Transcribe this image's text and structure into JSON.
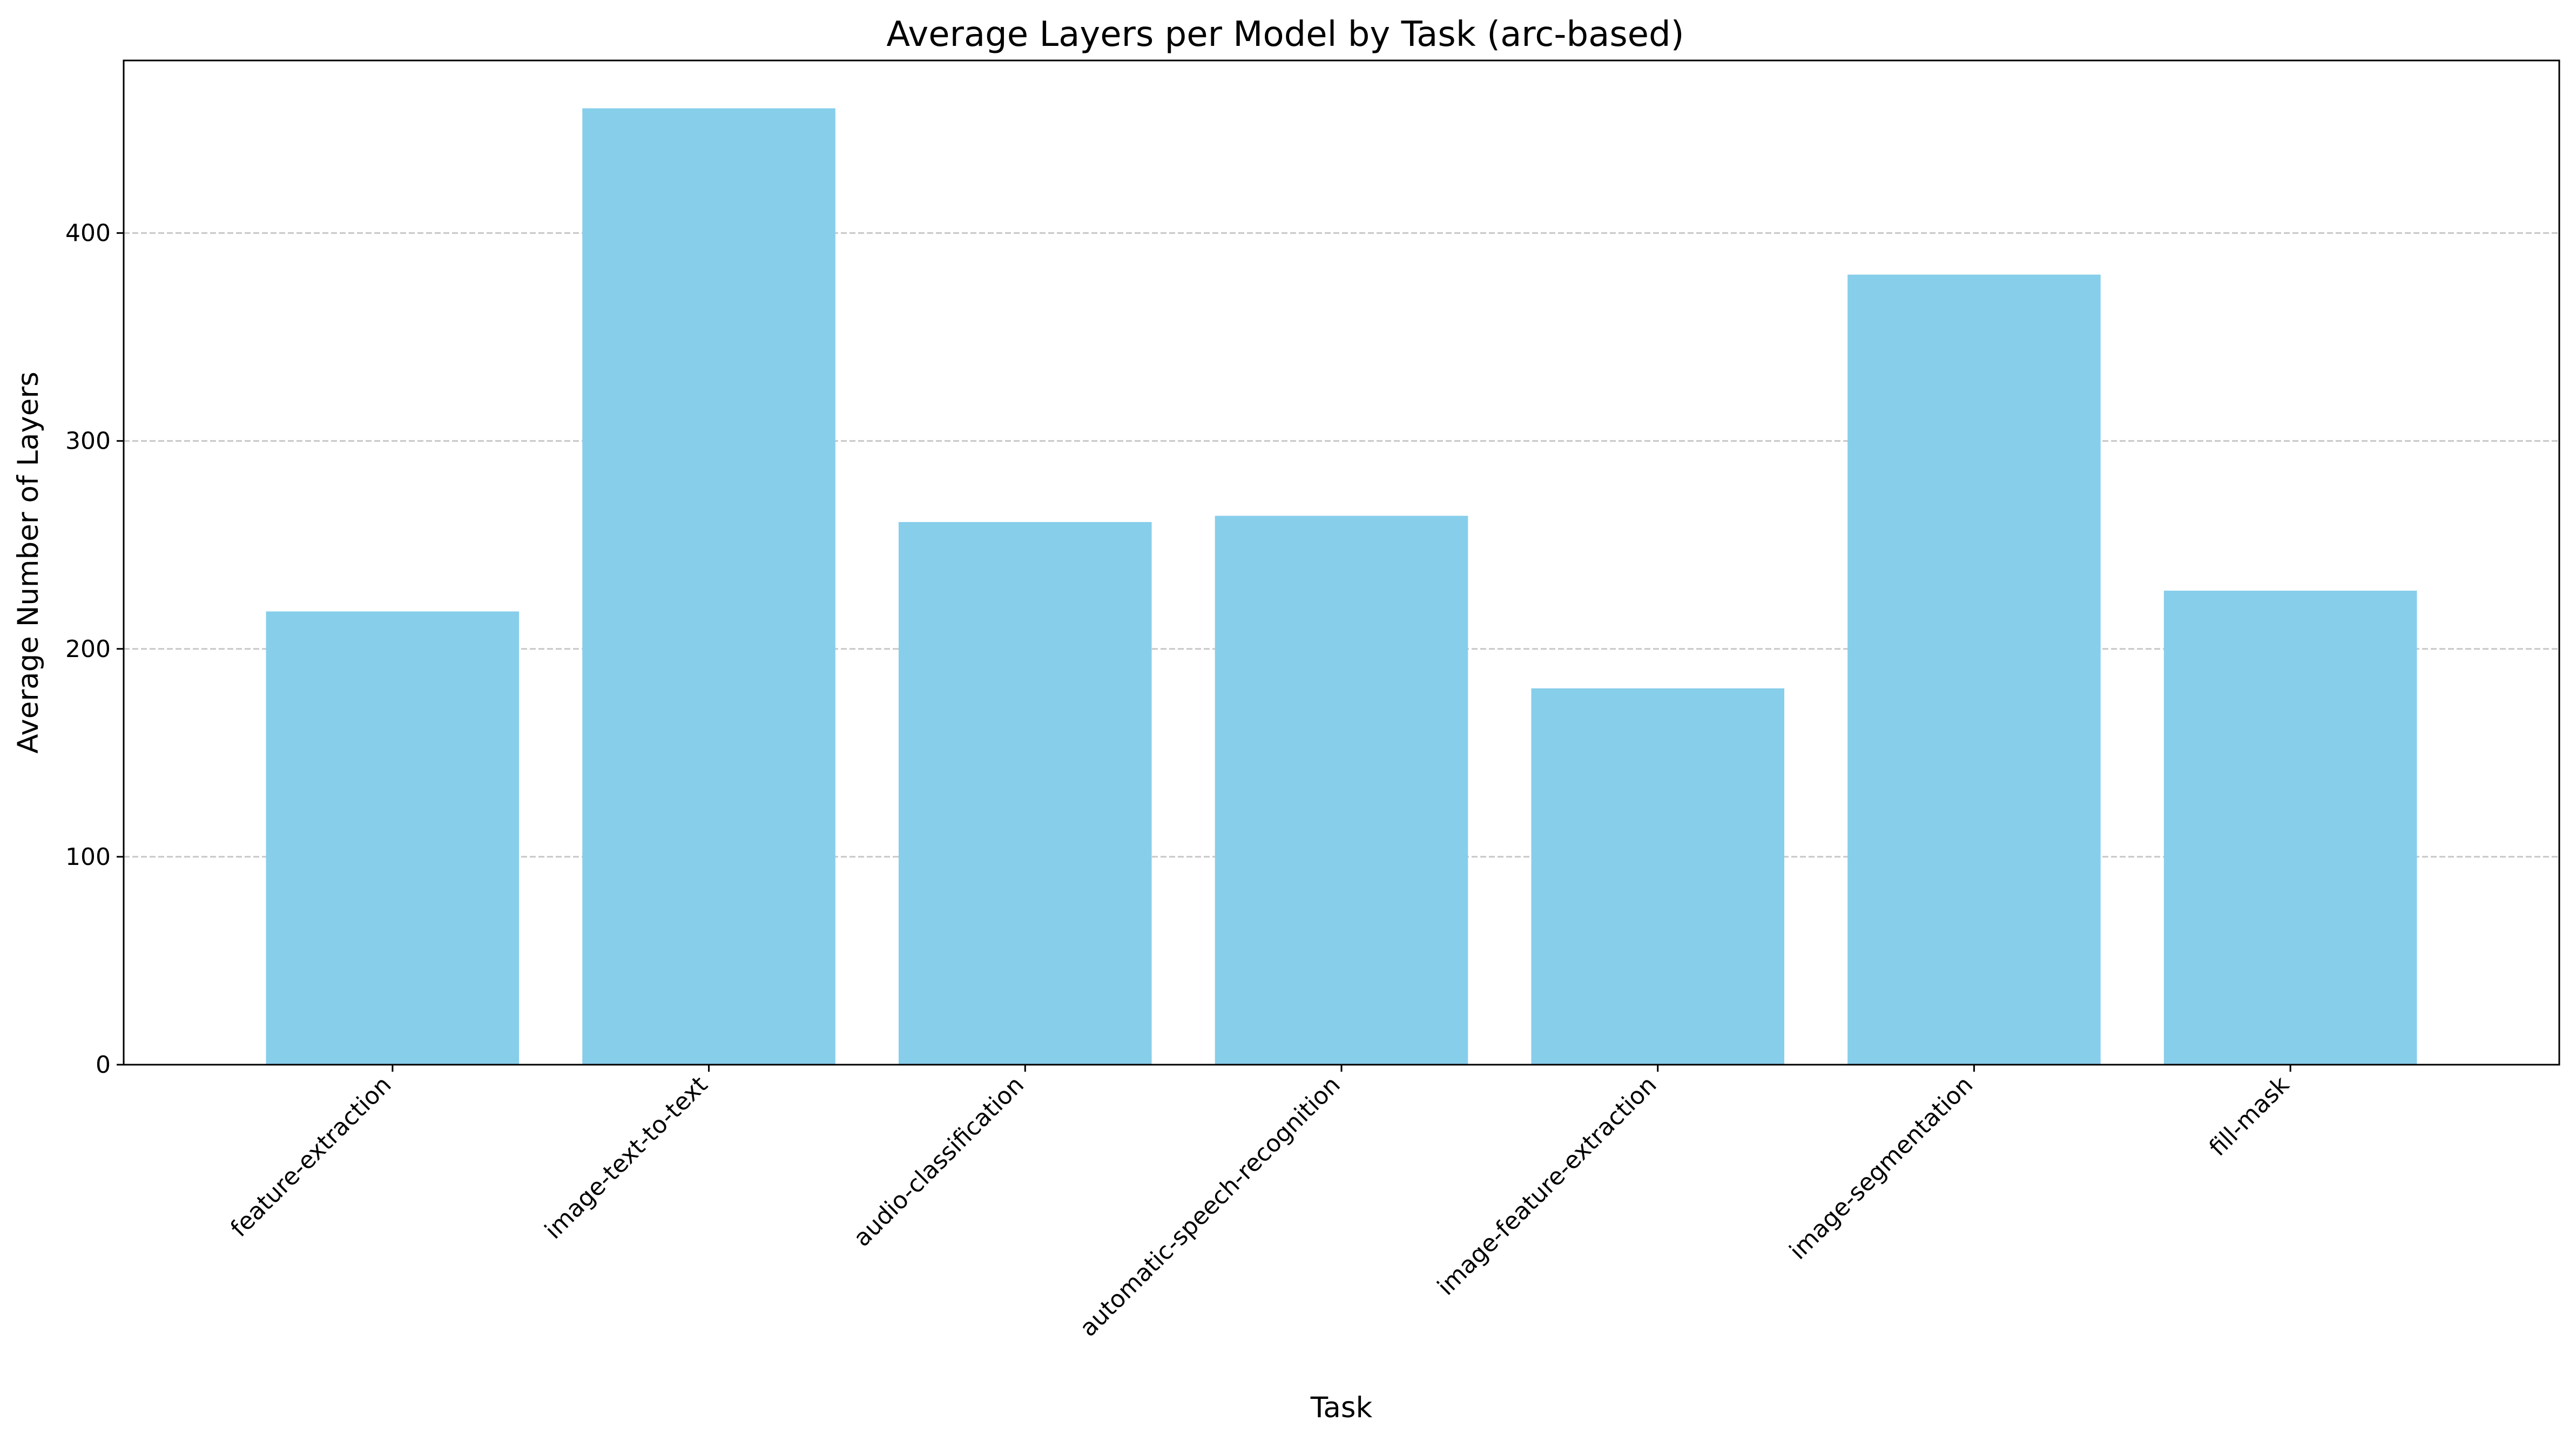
{
  "chart_data": {
    "type": "bar",
    "title": "Average Layers per Model by Task (arc-based)",
    "xlabel": "Task",
    "ylabel": "Average Number of Layers",
    "categories": [
      "feature-extraction",
      "image-text-to-text",
      "audio-classification",
      "automatic-speech-recognition",
      "image-feature-extraction",
      "image-segmentation",
      "fill-mask"
    ],
    "values": [
      218,
      460,
      261,
      264,
      181,
      380,
      228
    ],
    "ylim": [
      0,
      483
    ],
    "yticks": [
      0,
      100,
      200,
      300,
      400
    ],
    "grid": "y-dashed",
    "bar_color": "#87ceeb"
  }
}
